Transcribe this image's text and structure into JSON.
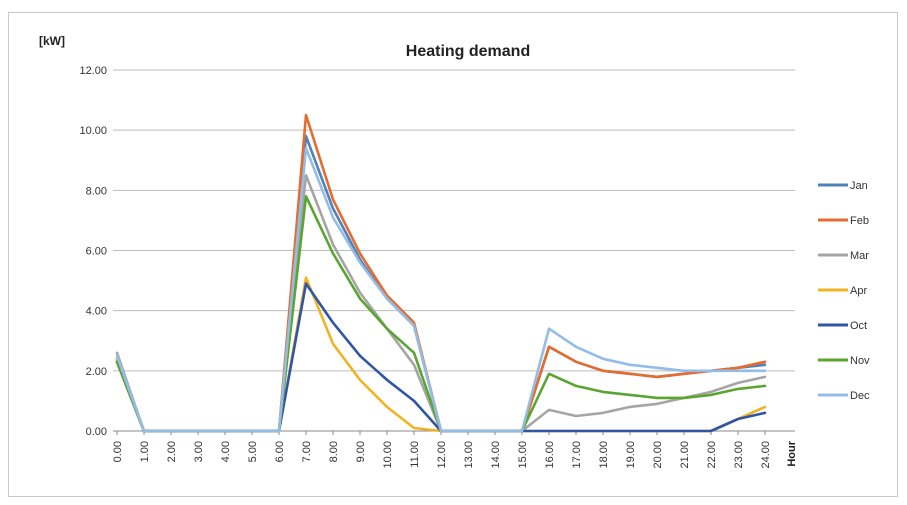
{
  "chart_data": {
    "type": "line",
    "title": "Heating demand",
    "ylabel": "[kW]",
    "xlabel": "Hour",
    "ylim": [
      0,
      12
    ],
    "yticks": [
      "0.00",
      "2.00",
      "4.00",
      "6.00",
      "8.00",
      "10.00",
      "12.00"
    ],
    "x": [
      "0.00",
      "1.00",
      "2.00",
      "3.00",
      "4.00",
      "5.00",
      "6.00",
      "7.00",
      "8.00",
      "9.00",
      "10.00",
      "11.00",
      "12.00",
      "13.00",
      "14.00",
      "15.00",
      "16.00",
      "17.00",
      "18.00",
      "19.00",
      "20.00",
      "21.00",
      "22.00",
      "23.00",
      "24.00"
    ],
    "legend_position": "right",
    "grid": true,
    "series": [
      {
        "name": "Jan",
        "color": "#4f81bd",
        "values": [
          2.4,
          0,
          0,
          0,
          0,
          0,
          0,
          9.8,
          7.4,
          5.7,
          4.4,
          3.5,
          0,
          0,
          0,
          0,
          2.8,
          2.3,
          2.0,
          1.9,
          1.8,
          1.9,
          2.0,
          2.1,
          2.2
        ]
      },
      {
        "name": "Feb",
        "color": "#e46c2f",
        "values": [
          2.3,
          0,
          0,
          0,
          0,
          0,
          0,
          10.5,
          7.7,
          5.9,
          4.5,
          3.6,
          0,
          0,
          0,
          0,
          2.8,
          2.3,
          2.0,
          1.9,
          1.8,
          1.9,
          2.0,
          2.1,
          2.3
        ]
      },
      {
        "name": "Mar",
        "color": "#a5a5a5",
        "values": [
          2.6,
          0,
          0,
          0,
          0,
          0,
          0,
          8.5,
          6.2,
          4.6,
          3.4,
          2.2,
          0,
          0,
          0,
          0,
          0.7,
          0.5,
          0.6,
          0.8,
          0.9,
          1.1,
          1.3,
          1.6,
          1.8
        ]
      },
      {
        "name": "Apr",
        "color": "#f0b323",
        "values": [
          2.4,
          0,
          0,
          0,
          0,
          0,
          0,
          5.1,
          2.9,
          1.7,
          0.8,
          0.1,
          0,
          0,
          0,
          0,
          0,
          0,
          0,
          0,
          0,
          0,
          0,
          0.4,
          0.8
        ]
      },
      {
        "name": "Oct",
        "color": "#2f56a6",
        "values": [
          2.3,
          0,
          0,
          0,
          0,
          0,
          0,
          4.9,
          3.6,
          2.5,
          1.7,
          1.0,
          0,
          0,
          0,
          0,
          0,
          0,
          0,
          0,
          0,
          0,
          0,
          0.4,
          0.6
        ]
      },
      {
        "name": "Nov",
        "color": "#5aa532",
        "values": [
          2.3,
          0,
          0,
          0,
          0,
          0,
          0,
          7.8,
          5.9,
          4.4,
          3.4,
          2.6,
          0,
          0,
          0,
          0,
          1.9,
          1.5,
          1.3,
          1.2,
          1.1,
          1.1,
          1.2,
          1.4,
          1.5
        ]
      },
      {
        "name": "Dec",
        "color": "#94bce6",
        "values": [
          2.5,
          0,
          0,
          0,
          0,
          0,
          0,
          9.4,
          7.1,
          5.6,
          4.4,
          3.5,
          0,
          0,
          0,
          0,
          3.4,
          2.8,
          2.4,
          2.2,
          2.1,
          2.0,
          2.0,
          2.0,
          2.0
        ]
      }
    ]
  }
}
